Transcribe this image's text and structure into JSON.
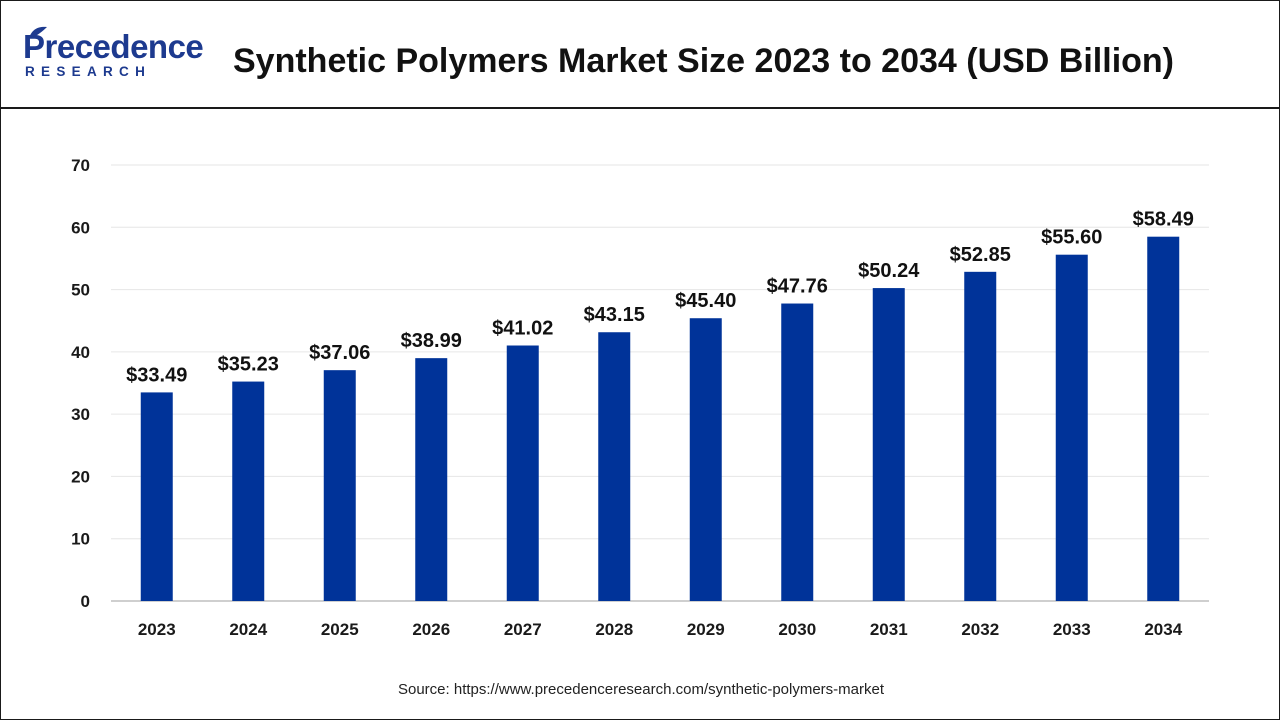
{
  "header": {
    "logo_main": "Precedence",
    "logo_sub": "RESEARCH",
    "title": "Synthetic Polymers Market Size 2023 to 2034 (USD Billion)"
  },
  "source": "Source: https://www.precedenceresearch.com/synthetic-polymers-market",
  "colors": {
    "bar": "#003399",
    "grid": "#e6e6e6",
    "axis": "#bfbfbf",
    "brand": "#1d3a8f"
  },
  "chart_data": {
    "type": "bar",
    "title": "Synthetic Polymers Market Size 2023 to 2034 (USD Billion)",
    "xlabel": "",
    "ylabel": "",
    "categories": [
      "2023",
      "2024",
      "2025",
      "2026",
      "2027",
      "2028",
      "2029",
      "2030",
      "2031",
      "2032",
      "2033",
      "2034"
    ],
    "values": [
      33.49,
      35.23,
      37.06,
      38.99,
      41.02,
      43.15,
      45.4,
      47.76,
      50.24,
      52.85,
      55.6,
      58.49
    ],
    "data_labels": [
      "$33.49",
      "$35.23",
      "$37.06",
      "$38.99",
      "$41.02",
      "$43.15",
      "$45.40",
      "$47.76",
      "$50.24",
      "$52.85",
      "$55.60",
      "$58.49"
    ],
    "yticks": [
      0,
      10,
      20,
      30,
      40,
      50,
      60,
      70
    ],
    "ylim": [
      0,
      70
    ],
    "grid": true,
    "legend": "none"
  }
}
